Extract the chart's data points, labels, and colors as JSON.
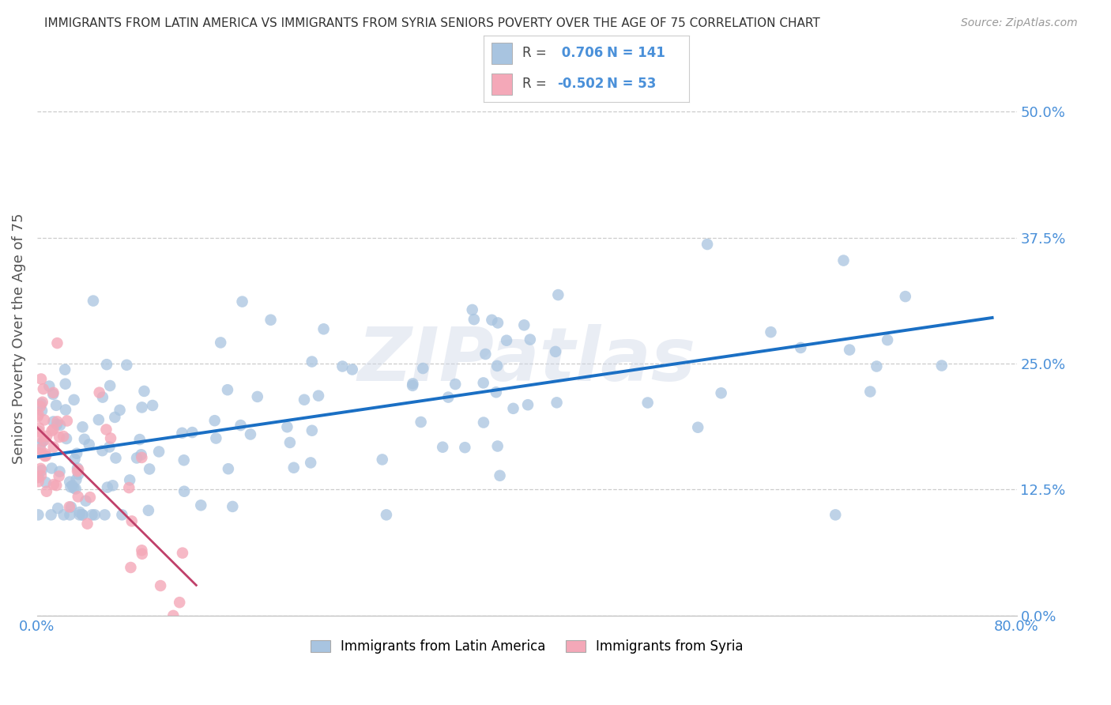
{
  "title": "IMMIGRANTS FROM LATIN AMERICA VS IMMIGRANTS FROM SYRIA SENIORS POVERTY OVER THE AGE OF 75 CORRELATION CHART",
  "source": "Source: ZipAtlas.com",
  "ylabel": "Seniors Poverty Over the Age of 75",
  "xlim": [
    0.0,
    0.8
  ],
  "ylim": [
    0.0,
    0.55
  ],
  "yticks": [
    0.0,
    0.125,
    0.25,
    0.375,
    0.5
  ],
  "ytick_labels": [
    "0.0%",
    "12.5%",
    "25.0%",
    "37.5%",
    "50.0%"
  ],
  "xticks": [
    0.0,
    0.2,
    0.4,
    0.6,
    0.8
  ],
  "xtick_labels": [
    "0.0%",
    "",
    "",
    "",
    "80.0%"
  ],
  "blue_R": 0.706,
  "blue_N": 141,
  "pink_R": -0.502,
  "pink_N": 53,
  "blue_color": "#a8c4e0",
  "pink_color": "#f4a8b8",
  "blue_line_color": "#1a6fc4",
  "pink_line_color": "#c0406a",
  "legend_blue_label": "Immigrants from Latin America",
  "legend_pink_label": "Immigrants from Syria",
  "watermark": "ZIPatlas",
  "background_color": "#ffffff",
  "grid_color": "#cccccc",
  "title_color": "#333333",
  "axis_label_color": "#555555",
  "tick_label_color": "#4a90d9"
}
